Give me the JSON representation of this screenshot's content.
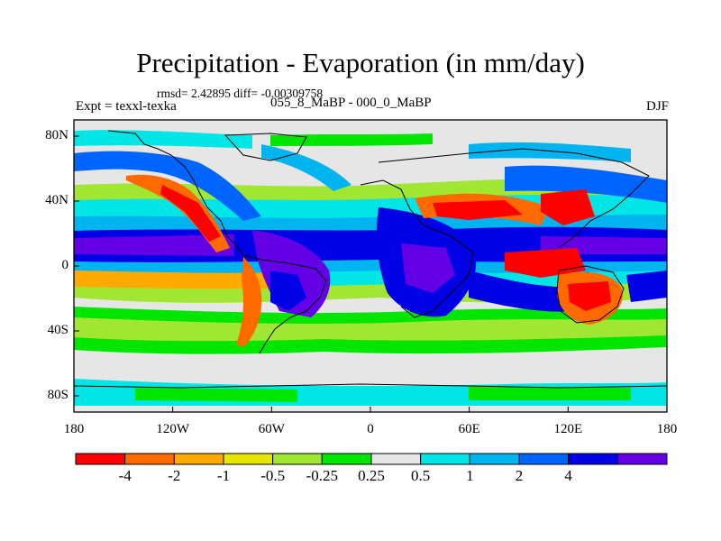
{
  "chart_data": {
    "type": "heatmap",
    "title": "Precipitation - Evaporation (in mm/day)",
    "stats_text": "rmsd= 2.42895 diff= -0.00309758",
    "left_label": "Expt = texxl-texka",
    "center_label": "055_8_MaBP - 000_0_MaBP",
    "right_label": "DJF",
    "x_ticks": [
      "180",
      "120W",
      "60W",
      "0",
      "60E",
      "120E",
      "180"
    ],
    "y_ticks": [
      "80N",
      "40N",
      "0",
      "40S",
      "80S"
    ],
    "xlim": [
      -180,
      180
    ],
    "ylim": [
      -90,
      90
    ],
    "colorbar": {
      "levels": [
        "-4",
        "-2",
        "-1",
        "-0.5",
        "-0.25",
        "0.25",
        "0.5",
        "1",
        "2",
        "4"
      ],
      "colors": [
        "#ff0000",
        "#ff6a00",
        "#ffaa00",
        "#e6e600",
        "#a0e632",
        "#00e600",
        "#e6e6e6",
        "#00e6e6",
        "#00b4f0",
        "#0064ff",
        "#0000e6",
        "#6400e6"
      ]
    },
    "field_note": "gridded P-E difference field with coastline overlay"
  }
}
